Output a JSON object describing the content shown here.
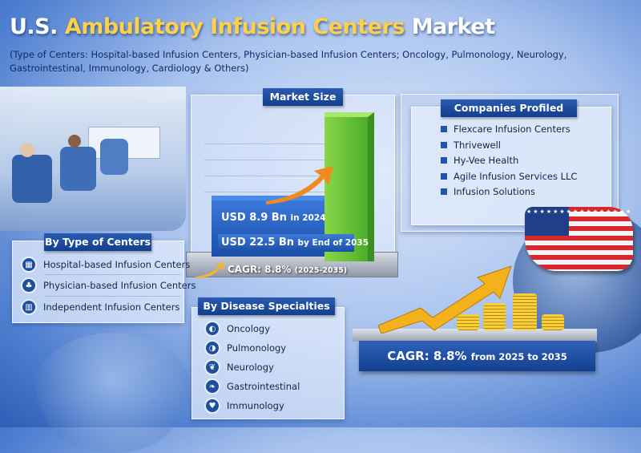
{
  "title": {
    "prefix": "U.S. ",
    "highlight": "Ambulatory Infusion Centers",
    "suffix": " Market"
  },
  "subtitle": "(Type of Centers: Hospital-based Infusion Centers, Physician-based Infusion Centers; Oncology, Pulmonology, Neurology, Gastrointestinal, Immunology, Cardiology & Others)",
  "market_size": {
    "header": "Market Size",
    "value_2024": "USD 8.9 Bn",
    "value_2024_suffix": "in 2024",
    "value_2035": "USD 22.5 Bn",
    "value_2035_suffix": "by End of 2035",
    "cagr": "CAGR: 8.8%",
    "cagr_period": "(2025-2035)"
  },
  "companies": {
    "header": "Companies Profiled",
    "items": [
      "Flexcare Infusion Centers",
      "Thrivewell",
      "Hy-Vee Health",
      "Agile Infusion Services LLC",
      "Infusion Solutions"
    ]
  },
  "type_of_centers": {
    "header": "By Type of Centers",
    "items": [
      {
        "label": "Hospital-based Infusion Centers",
        "icon": "hospital-icon"
      },
      {
        "label": "Physician-based Infusion Centers",
        "icon": "physician-icon"
      },
      {
        "label": "Independent Infusion Centers",
        "icon": "building-icon"
      }
    ]
  },
  "disease_specialties": {
    "header": "By Disease Specialties",
    "items": [
      {
        "label": "Oncology",
        "icon": "kidney-icon"
      },
      {
        "label": "Pulmonology",
        "icon": "lungs-icon"
      },
      {
        "label": "Neurology",
        "icon": "brain-icon"
      },
      {
        "label": "Gastrointestinal",
        "icon": "stomach-icon"
      },
      {
        "label": "Immunology",
        "icon": "heart-icon"
      }
    ]
  },
  "cagr_banner": {
    "main": "CAGR: 8.8%",
    "suffix": "from 2025 to 2035"
  },
  "colors": {
    "accent_gold": "#ffd04a",
    "header_blue": "#1a4a9c",
    "bar_green": "#5cc23a",
    "bar_blue": "#2a63c8",
    "arrow_orange": "#f08a1c"
  }
}
